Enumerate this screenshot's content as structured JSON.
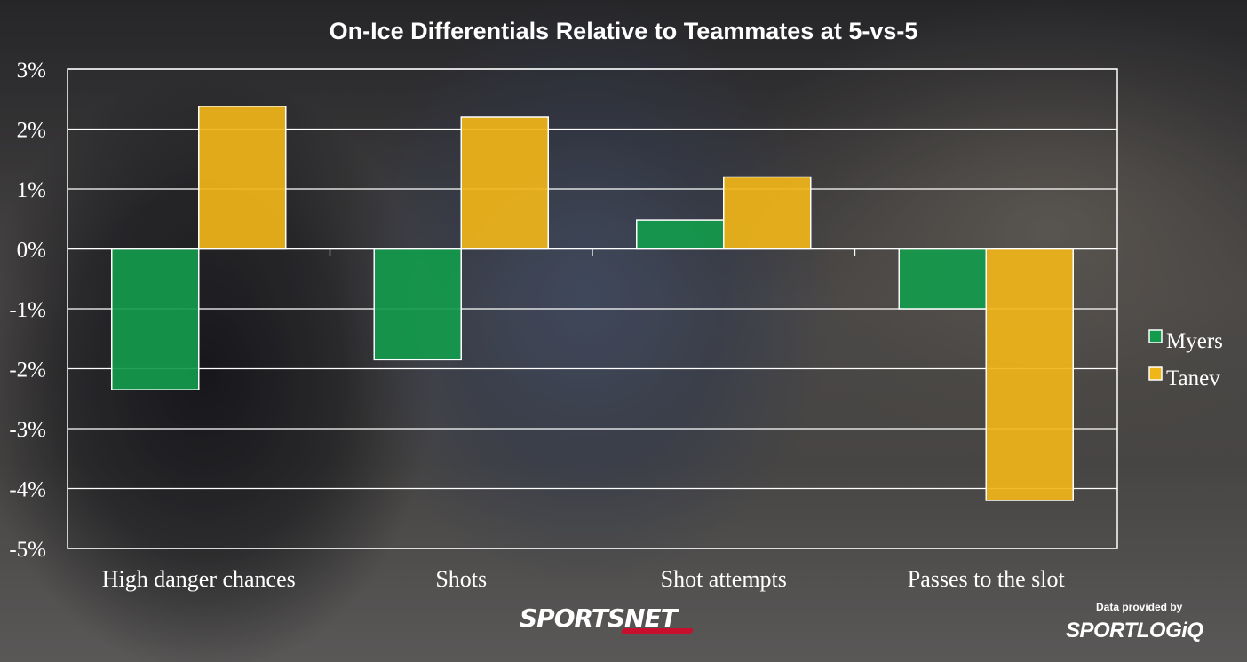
{
  "title": "On-Ice Differentials Relative to Teammates at 5-vs-5",
  "chart_data": {
    "type": "bar",
    "categories": [
      "High danger chances",
      "Shots",
      "Shot attempts",
      "Passes to the slot"
    ],
    "series": [
      {
        "name": "Myers",
        "values": [
          -2.35,
          -1.85,
          0.48,
          -1.0
        ],
        "color": "#149a4c"
      },
      {
        "name": "Tanev",
        "values": [
          2.38,
          2.2,
          1.2,
          -4.2
        ],
        "color": "#f0b519"
      }
    ],
    "ylim": [
      -5,
      3
    ],
    "yticks": [
      3,
      2,
      1,
      0,
      -1,
      -2,
      -3,
      -4,
      -5
    ],
    "ytick_labels": [
      "3%",
      "2%",
      "1%",
      "0%",
      "-1%",
      "-2%",
      "-3%",
      "-4%",
      "-5%"
    ],
    "grid": true,
    "legend_position": "right",
    "xlabel": "",
    "ylabel": ""
  },
  "branding": {
    "network": "SPORTSNET",
    "credit_line": "Data provided by",
    "credit_brand": "SPORTLOGiQ"
  }
}
